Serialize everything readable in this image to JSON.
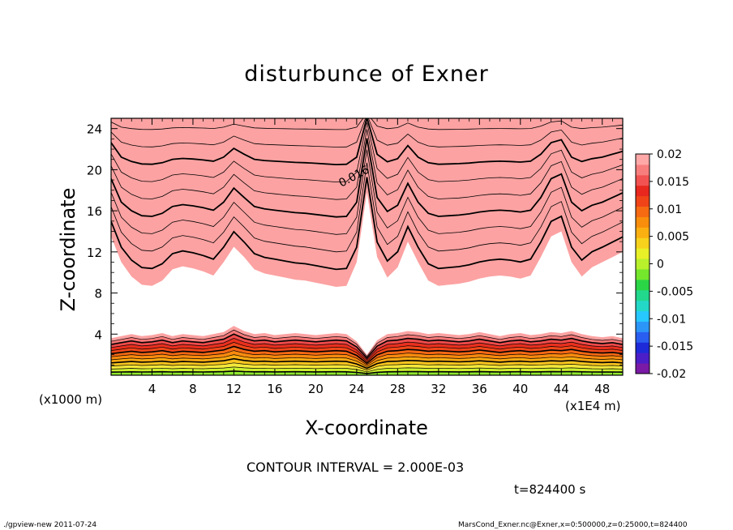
{
  "chart_data": {
    "type": "heatmap",
    "subtype": "filled-contour",
    "title": "disturbunce of Exner",
    "xlabel": "X-coordinate",
    "ylabel": "Z-coordinate",
    "x_unit_label": "(x1000 m)",
    "x_unit_label_right": "(x1E4 m)",
    "xlim": [
      0,
      50
    ],
    "ylim": [
      0,
      25
    ],
    "x_ticks": [
      4,
      8,
      12,
      16,
      20,
      24,
      28,
      32,
      36,
      40,
      44,
      48
    ],
    "x_tick_labels": [
      "4",
      "8",
      "12",
      "16",
      "20",
      "24",
      "28",
      "32",
      "36",
      "40",
      "44",
      "48"
    ],
    "y_ticks": [
      4,
      8,
      12,
      16,
      20,
      24
    ],
    "y_tick_labels": [
      "4",
      "8",
      "12",
      "16",
      "20",
      "24"
    ],
    "contour_interval": 0.002,
    "contour_interval_text": "CONTOUR INTERVAL = 2.000E-03",
    "contour_label": "0.016",
    "contour_label_position": {
      "x": 22.5,
      "z": 18.3
    },
    "colorbar": {
      "range": [
        -0.02,
        0.02
      ],
      "tick_labels": [
        "0.02",
        "0.015",
        "0.01",
        "0.005",
        "0",
        "-0.005",
        "-0.01",
        "-0.015",
        "-0.02"
      ],
      "tick_values": [
        0.02,
        0.015,
        0.01,
        0.005,
        0,
        -0.005,
        -0.01,
        -0.015,
        -0.02
      ],
      "colors": [
        "#7a1aa6",
        "#4b1ec8",
        "#1e2ad8",
        "#2a5ef0",
        "#2c96f8",
        "#26c8ff",
        "#24d8c8",
        "#22d88c",
        "#2ad646",
        "#74e62c",
        "#b8f02c",
        "#e8f028",
        "#f6d21c",
        "#fbb012",
        "#f98e0c",
        "#f66a12",
        "#f04418",
        "#e8281e",
        "#f25252",
        "#f87e7e",
        "#ffa8a8"
      ]
    },
    "upper_region": {
      "levels": [
        {
          "value": 0.004,
          "color": "#f4e83a"
        },
        {
          "value": 0.006,
          "color": "#f8c41e"
        },
        {
          "value": 0.008,
          "color": "#fbaa12"
        },
        {
          "value": 0.01,
          "color": "#f98a0e"
        },
        {
          "value": 0.012,
          "color": "#f56814"
        },
        {
          "value": 0.014,
          "color": "#ef4619"
        },
        {
          "value": 0.016,
          "color": "#e92f1e"
        },
        {
          "value": 0.018,
          "color": "#ef4a4a"
        },
        {
          "value": 0.02,
          "color": "#f77878"
        },
        {
          "value": 0.022,
          "color": "#fca2a2"
        }
      ],
      "boundary_x": [
        0,
        1,
        2,
        3,
        4,
        5,
        6,
        7,
        8,
        9,
        10,
        11,
        12,
        13,
        14,
        15,
        16,
        17,
        18,
        19,
        20,
        21,
        22,
        23,
        24,
        25,
        26,
        27,
        28,
        29,
        30,
        31,
        32,
        33,
        34,
        35,
        36,
        37,
        38,
        39,
        40,
        41,
        42,
        43,
        44,
        45,
        46,
        47,
        48,
        49,
        50
      ],
      "lowest_boundary_z": [
        13.5,
        11.0,
        9.6,
        8.8,
        8.7,
        9.2,
        10.3,
        10.6,
        10.4,
        10.1,
        9.7,
        11.0,
        12.5,
        11.5,
        10.3,
        9.9,
        9.7,
        9.5,
        9.3,
        9.2,
        9.0,
        8.8,
        8.6,
        8.7,
        11.0,
        17.8,
        11.5,
        9.5,
        10.5,
        13.0,
        11.0,
        9.2,
        8.7,
        8.8,
        8.9,
        9.1,
        9.4,
        9.6,
        9.7,
        9.6,
        9.4,
        9.7,
        11.5,
        13.5,
        14.0,
        11.0,
        9.6,
        10.5,
        11.0,
        11.5,
        12.0
      ]
    },
    "lower_region": {
      "levels": [
        {
          "value": 0.02,
          "color": "#fca2a2"
        },
        {
          "value": 0.018,
          "color": "#f77878"
        },
        {
          "value": 0.016,
          "color": "#ef4a4a"
        },
        {
          "value": 0.014,
          "color": "#e92f1e"
        },
        {
          "value": 0.012,
          "color": "#ef4619"
        },
        {
          "value": 0.01,
          "color": "#f56814"
        },
        {
          "value": 0.008,
          "color": "#f98a0e"
        },
        {
          "value": 0.006,
          "color": "#fbaa12"
        },
        {
          "value": 0.004,
          "color": "#f8c41e"
        },
        {
          "value": 0.002,
          "color": "#f4e83a"
        },
        {
          "value": 0.0,
          "color": "#cdf030"
        },
        {
          "value": -0.002,
          "color": "#8ee62e"
        }
      ],
      "top_z": [
        3.6,
        3.8,
        4.0,
        3.8,
        3.9,
        4.1,
        3.8,
        4.0,
        3.9,
        3.8,
        4.0,
        4.2,
        4.8,
        4.3,
        4.0,
        4.1,
        3.9,
        4.0,
        4.1,
        4.0,
        3.9,
        4.0,
        4.1,
        4.0,
        3.3,
        2.0,
        3.4,
        4.0,
        4.1,
        4.3,
        4.2,
        4.0,
        4.1,
        4.0,
        3.9,
        4.0,
        4.2,
        4.0,
        3.8,
        4.0,
        4.1,
        3.9,
        4.0,
        4.2,
        4.1,
        4.3,
        4.0,
        3.8,
        3.7,
        3.8,
        3.6
      ]
    }
  },
  "labels": {
    "time": "t=824400 s",
    "footer_left": "./gpview-new   2011-07-24",
    "footer_right": "MarsCond_Exner.nc@Exner,x=0:500000,z=0:25000,t=824400"
  }
}
